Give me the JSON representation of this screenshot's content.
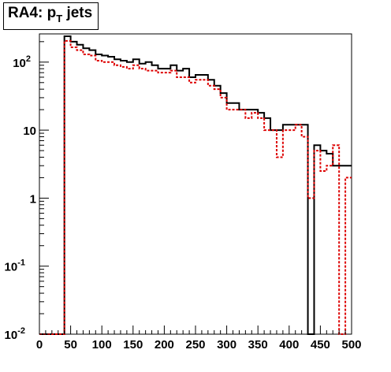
{
  "chart_data": {
    "type": "histogram",
    "title": {
      "prefix": "RA4: p",
      "subscript": "T",
      "suffix": " jets"
    },
    "xlabel": "",
    "ylabel": "",
    "x_bin_edges": [
      0,
      10,
      20,
      30,
      40,
      50,
      60,
      70,
      80,
      90,
      100,
      110,
      120,
      130,
      140,
      150,
      160,
      170,
      180,
      190,
      200,
      210,
      220,
      230,
      240,
      250,
      260,
      270,
      280,
      290,
      300,
      310,
      320,
      330,
      340,
      350,
      360,
      370,
      380,
      390,
      400,
      410,
      420,
      430,
      440,
      450,
      460,
      470,
      480,
      490,
      500
    ],
    "xlim": [
      0,
      500
    ],
    "ylim": [
      0.01,
      260
    ],
    "yscale": "log",
    "x_ticks": [
      {
        "value": 0,
        "label": "0"
      },
      {
        "value": 50,
        "label": "50"
      },
      {
        "value": 100,
        "label": "100"
      },
      {
        "value": 150,
        "label": "150"
      },
      {
        "value": 200,
        "label": "200"
      },
      {
        "value": 250,
        "label": "250"
      },
      {
        "value": 300,
        "label": "300"
      },
      {
        "value": 350,
        "label": "350"
      },
      {
        "value": 400,
        "label": "400"
      },
      {
        "value": 450,
        "label": "450"
      },
      {
        "value": 500,
        "label": "500"
      }
    ],
    "y_ticks": [
      {
        "value": 0.01,
        "base": "10",
        "exp": "-2"
      },
      {
        "value": 0.1,
        "base": "10",
        "exp": "-1"
      },
      {
        "value": 1,
        "base": "1",
        "exp": ""
      },
      {
        "value": 10,
        "base": "10",
        "exp": ""
      },
      {
        "value": 100,
        "base": "10",
        "exp": "2"
      }
    ],
    "series": [
      {
        "color": "#000000",
        "style": "solid",
        "values": [
          0.01,
          0.01,
          0.01,
          0.01,
          240,
          200,
          180,
          160,
          150,
          130,
          125,
          120,
          110,
          105,
          100,
          110,
          95,
          100,
          90,
          80,
          80,
          90,
          75,
          80,
          60,
          65,
          65,
          55,
          45,
          35,
          25,
          25,
          20,
          20,
          20,
          18,
          15,
          10,
          10,
          12,
          12,
          12,
          12,
          0,
          6,
          5,
          4.5,
          3,
          3,
          3
        ]
      },
      {
        "color": "#dd0000",
        "style": "dashed",
        "values": [
          0.01,
          0.01,
          0.01,
          0.01,
          205,
          165,
          150,
          130,
          125,
          105,
          100,
          100,
          90,
          85,
          80,
          90,
          80,
          75,
          75,
          70,
          70,
          75,
          60,
          60,
          50,
          55,
          55,
          45,
          40,
          30,
          20,
          20,
          20,
          15,
          18,
          15,
          10,
          10,
          4,
          10,
          10,
          12,
          8,
          1.0,
          5,
          2.5,
          3,
          6,
          0.01,
          2
        ]
      }
    ]
  }
}
